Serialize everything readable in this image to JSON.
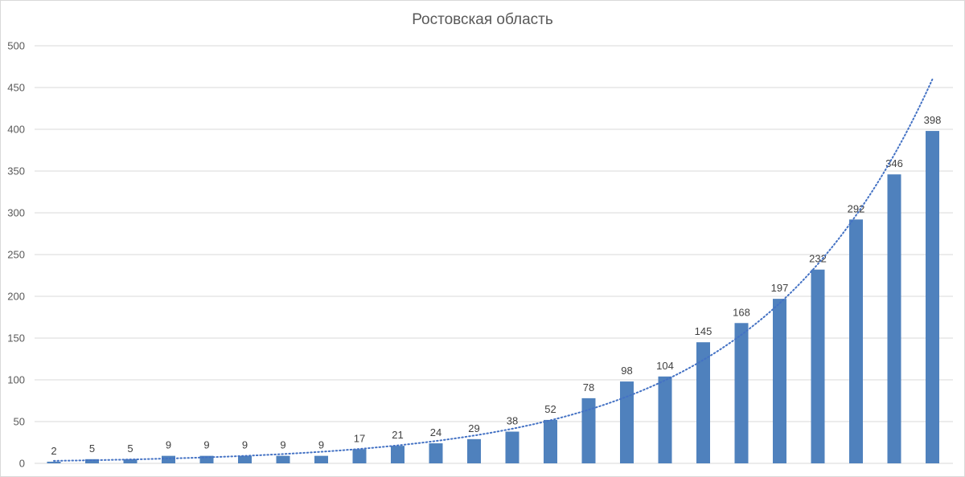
{
  "chart_data": {
    "type": "bar",
    "title": "Ростовская область",
    "xlabel": "",
    "ylabel": "",
    "ylim": [
      0,
      500
    ],
    "yticks": [
      0,
      50,
      100,
      150,
      200,
      250,
      300,
      350,
      400,
      450,
      500
    ],
    "grid": true,
    "legend": "none",
    "values": [
      2,
      5,
      5,
      9,
      9,
      9,
      9,
      9,
      17,
      21,
      24,
      29,
      38,
      52,
      78,
      98,
      104,
      145,
      168,
      197,
      232,
      292,
      346,
      398
    ],
    "trendline": {
      "type": "exponential",
      "style": "dotted",
      "start": 3,
      "end": 460
    },
    "colors": {
      "bar": "#4f81bd",
      "trend": "#4472c4",
      "grid": "#d9d9d9"
    }
  }
}
